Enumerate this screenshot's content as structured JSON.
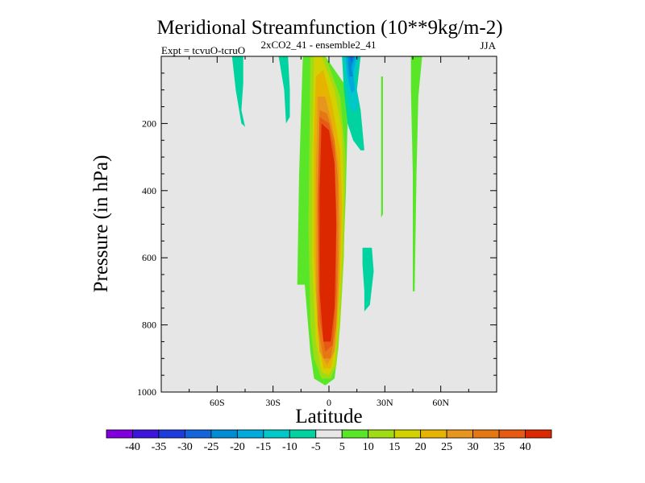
{
  "chart_data": {
    "type": "heatmap",
    "title": "Meridional Streamfunction (10**9kg/m-2)",
    "subtitle_left": "Expt = tcvuO-tcruO",
    "subtitle_center": "2xCO2_41 - ensemble2_41",
    "subtitle_right": "JJA",
    "xlabel": "Latitude",
    "ylabel": "Pressure (in hPa)",
    "xlim": [
      -90,
      90
    ],
    "ylim": [
      1000,
      0
    ],
    "x_ticks": [
      {
        "value": -60,
        "label": "60S"
      },
      {
        "value": -30,
        "label": "30S"
      },
      {
        "value": 0,
        "label": "0"
      },
      {
        "value": 30,
        "label": "30N"
      },
      {
        "value": 60,
        "label": "60N"
      }
    ],
    "y_ticks": [
      {
        "value": 200,
        "label": "200"
      },
      {
        "value": 400,
        "label": "400"
      },
      {
        "value": 600,
        "label": "600"
      },
      {
        "value": 800,
        "label": "800"
      },
      {
        "value": 1000,
        "label": "1000"
      }
    ],
    "background_color": "#e6e6e6",
    "colorbar": {
      "labels": [
        "-40",
        "-35",
        "-30",
        "-25",
        "-20",
        "-15",
        "-10",
        "-5",
        "5",
        "10",
        "15",
        "20",
        "25",
        "30",
        "35",
        "40"
      ],
      "colors": [
        "#7f00dc",
        "#3c14dc",
        "#1e3cdc",
        "#1464dc",
        "#008cd2",
        "#00aadc",
        "#00c8c8",
        "#00d2a0",
        "#e6e6e6",
        "#5ae628",
        "#a0dc14",
        "#d2d200",
        "#e6b400",
        "#e6961e",
        "#e67814",
        "#e65a14",
        "#dc2800"
      ]
    },
    "contours": [
      {
        "level": 5,
        "color": "#5ae628",
        "points": [
          [
            -14,
            0
          ],
          [
            -2,
            0
          ],
          [
            8,
            80
          ],
          [
            10,
            200
          ],
          [
            9,
            420
          ],
          [
            7,
            700
          ],
          [
            5,
            870
          ],
          [
            3,
            960
          ],
          [
            -2,
            980
          ],
          [
            -8,
            960
          ],
          [
            -10,
            880
          ],
          [
            -13,
            680
          ],
          [
            -17,
            680
          ],
          [
            -16,
            350
          ]
        ]
      },
      {
        "level": 10,
        "color": "#a0dc14",
        "points": [
          [
            -10,
            0
          ],
          [
            -2,
            0
          ],
          [
            6,
            120
          ],
          [
            9,
            300
          ],
          [
            8,
            600
          ],
          [
            6,
            800
          ],
          [
            4,
            920
          ],
          [
            1,
            960
          ],
          [
            -4,
            960
          ],
          [
            -8,
            900
          ],
          [
            -10,
            800
          ],
          [
            -11,
            500
          ]
        ]
      },
      {
        "level": 15,
        "color": "#d2d200",
        "points": [
          [
            -8,
            0
          ],
          [
            -4,
            0
          ],
          [
            3,
            100
          ],
          [
            7,
            220
          ],
          [
            8,
            400
          ],
          [
            7,
            600
          ],
          [
            5,
            800
          ],
          [
            3,
            920
          ],
          [
            0,
            950
          ],
          [
            -4,
            940
          ],
          [
            -7,
            850
          ],
          [
            -9,
            620
          ],
          [
            -9,
            300
          ]
        ]
      },
      {
        "level": 20,
        "color": "#e6b400",
        "points": [
          [
            -7,
            60
          ],
          [
            -3,
            40
          ],
          [
            2,
            150
          ],
          [
            6,
            280
          ],
          [
            7,
            450
          ],
          [
            6,
            650
          ],
          [
            4,
            850
          ],
          [
            1,
            930
          ],
          [
            -3,
            930
          ],
          [
            -6,
            830
          ],
          [
            -8,
            600
          ],
          [
            -8,
            250
          ]
        ]
      },
      {
        "level": 25,
        "color": "#e6961e",
        "points": [
          [
            -6,
            120
          ],
          [
            -2,
            120
          ],
          [
            2,
            210
          ],
          [
            5,
            320
          ],
          [
            6,
            500
          ],
          [
            5,
            720
          ],
          [
            3,
            880
          ],
          [
            -1,
            920
          ],
          [
            -5,
            880
          ],
          [
            -7,
            700
          ],
          [
            -7,
            350
          ]
        ]
      },
      {
        "level": 30,
        "color": "#e67814",
        "points": [
          [
            -5,
            160
          ],
          [
            -1,
            170
          ],
          [
            3,
            250
          ],
          [
            5,
            380
          ],
          [
            5,
            600
          ],
          [
            4,
            800
          ],
          [
            1,
            900
          ],
          [
            -3,
            900
          ],
          [
            -6,
            800
          ],
          [
            -6,
            400
          ]
        ]
      },
      {
        "level": 35,
        "color": "#e65a14",
        "points": [
          [
            -5,
            180
          ],
          [
            0,
            200
          ],
          [
            3,
            280
          ],
          [
            4,
            450
          ],
          [
            4,
            700
          ],
          [
            2,
            860
          ],
          [
            -2,
            880
          ],
          [
            -5,
            780
          ],
          [
            -6,
            450
          ]
        ]
      },
      {
        "level": 40,
        "color": "#dc2800",
        "points": [
          [
            -4,
            200
          ],
          [
            0,
            220
          ],
          [
            3,
            320
          ],
          [
            4,
            500
          ],
          [
            3,
            750
          ],
          [
            1,
            850
          ],
          [
            -3,
            850
          ],
          [
            -5,
            700
          ],
          [
            -5,
            400
          ]
        ]
      },
      {
        "level": -5,
        "color": "#00d2a0",
        "points": [
          [
            -52,
            0
          ],
          [
            -46,
            0
          ],
          [
            -46,
            80
          ],
          [
            -47,
            160
          ],
          [
            -45,
            210
          ],
          [
            -47,
            200
          ],
          [
            -50,
            100
          ]
        ]
      },
      {
        "level": -5,
        "color": "#00d2a0",
        "points": [
          [
            -27,
            0
          ],
          [
            -22,
            0
          ],
          [
            -21,
            100
          ],
          [
            -21,
            180
          ],
          [
            -23,
            200
          ],
          [
            -24,
            100
          ]
        ]
      },
      {
        "level": -5,
        "color": "#00d2a0",
        "points": [
          [
            7,
            0
          ],
          [
            17,
            0
          ],
          [
            15,
            100
          ],
          [
            17,
            160
          ],
          [
            19,
            280
          ],
          [
            17,
            280
          ],
          [
            13,
            250
          ],
          [
            10,
            200
          ],
          [
            8,
            100
          ]
        ]
      },
      {
        "level": -10,
        "color": "#00c8c8",
        "points": [
          [
            8,
            0
          ],
          [
            16,
            0
          ],
          [
            14,
            70
          ],
          [
            16,
            140
          ],
          [
            14,
            170
          ],
          [
            11,
            150
          ],
          [
            9,
            80
          ]
        ]
      },
      {
        "level": -15,
        "color": "#00aadc",
        "points": [
          [
            9,
            0
          ],
          [
            15,
            0
          ],
          [
            13,
            50
          ],
          [
            14,
            100
          ],
          [
            12,
            110
          ],
          [
            10,
            60
          ]
        ]
      },
      {
        "level": -20,
        "color": "#008cd2",
        "points": [
          [
            10,
            0
          ],
          [
            14,
            0
          ],
          [
            12,
            35
          ],
          [
            13,
            60
          ],
          [
            11,
            60
          ]
        ]
      },
      {
        "level": -25,
        "color": "#1464dc",
        "points": [
          [
            11,
            0
          ],
          [
            13,
            0
          ],
          [
            12,
            20
          ]
        ]
      },
      {
        "level": -5,
        "color": "#00d2a0",
        "points": [
          [
            18,
            570
          ],
          [
            23,
            570
          ],
          [
            24,
            640
          ],
          [
            22,
            740
          ],
          [
            19,
            760
          ],
          [
            19,
            700
          ],
          [
            18,
            620
          ]
        ]
      },
      {
        "level": 5,
        "color": "#5ae628",
        "points": [
          [
            28,
            60
          ],
          [
            29,
            60
          ],
          [
            29,
            470
          ],
          [
            28,
            480
          ]
        ]
      },
      {
        "level": 5,
        "color": "#5ae628",
        "points": [
          [
            44,
            0
          ],
          [
            50,
            0
          ],
          [
            48,
            120
          ],
          [
            47,
            350
          ],
          [
            46,
            700
          ],
          [
            45,
            700
          ],
          [
            45,
            350
          ],
          [
            44,
            100
          ]
        ]
      }
    ]
  }
}
